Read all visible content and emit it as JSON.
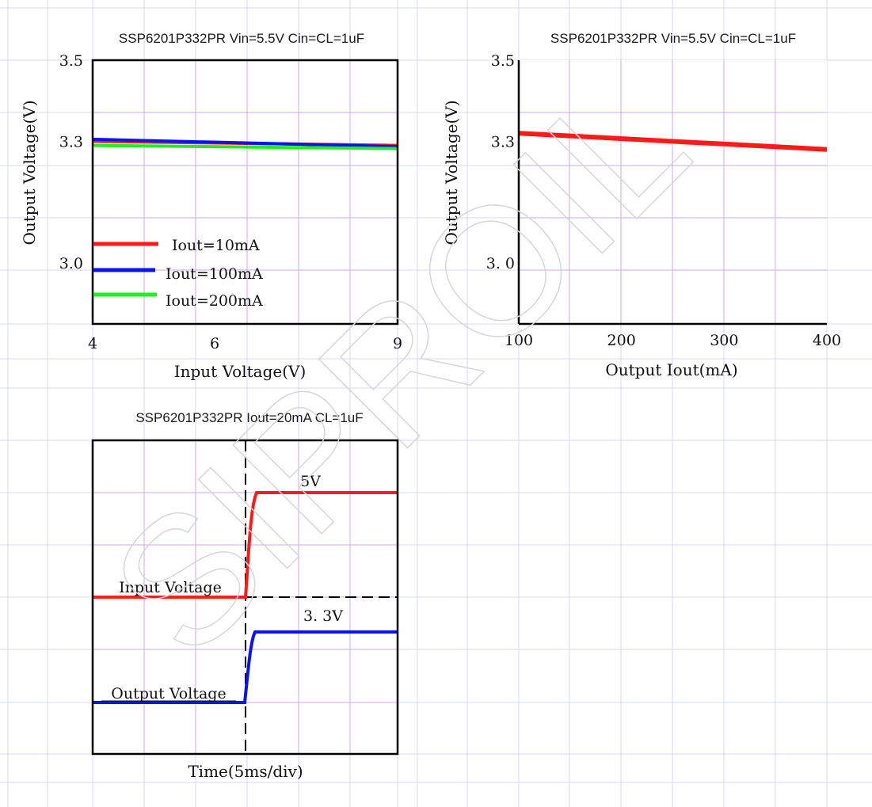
{
  "watermark": "SIPROIL",
  "colors": {
    "page_grid": "#d6d9ef",
    "plot_grid": "#c9a8ee",
    "frame": "#000000",
    "red": "#ff1a1a",
    "blue": "#0a14ee",
    "green": "#22ee22"
  },
  "chart_data": [
    {
      "id": "line-regulation",
      "type": "line",
      "title": "SSP6201P332PR Vin=5.5V Cin=CL=1uF",
      "xlabel": "Input Voltage(V)",
      "ylabel": "Output Voltage(V)",
      "xlim": [
        4,
        9
      ],
      "ylim": [
        2.85,
        3.5
      ],
      "xticks": [
        {
          "value": 4,
          "label": "4"
        },
        {
          "value": 6,
          "label": "6"
        },
        {
          "value": 9,
          "label": "9"
        }
      ],
      "yticks": [
        {
          "value": 3.5,
          "label": "3.5"
        },
        {
          "value": 3.3,
          "label": "3.3"
        },
        {
          "value": 3.0,
          "label": "3.0"
        }
      ],
      "grid": true,
      "legend_position": "bottom-left",
      "series": [
        {
          "name": "Iout=10mA",
          "color": "#ff1a1a",
          "x": [
            4,
            9
          ],
          "y": [
            3.3,
            3.29
          ]
        },
        {
          "name": "Iout=100mA",
          "color": "#0a14ee",
          "x": [
            4,
            9
          ],
          "y": [
            3.305,
            3.287
          ]
        },
        {
          "name": "Iout=200mA",
          "color": "#22ee22",
          "x": [
            4,
            9
          ],
          "y": [
            3.29,
            3.282
          ]
        }
      ]
    },
    {
      "id": "load-regulation",
      "type": "line",
      "title": "SSP6201P332PR Vin=5.5V Cin=CL=1uF",
      "xlabel": "Output Iout(mA)",
      "ylabel": "Output Voltage(V)",
      "xlim": [
        100,
        400
      ],
      "ylim": [
        2.85,
        3.5
      ],
      "xticks": [
        {
          "value": 100,
          "label": "100"
        },
        {
          "value": 200,
          "label": "200"
        },
        {
          "value": 300,
          "label": "300"
        },
        {
          "value": 400,
          "label": "400"
        }
      ],
      "yticks": [
        {
          "value": 3.5,
          "label": "3.5"
        },
        {
          "value": 3.3,
          "label": "3.3"
        },
        {
          "value": 3.0,
          "label": "3. 0"
        }
      ],
      "grid": true,
      "series": [
        {
          "color": "#ff1a1a",
          "x": [
            100,
            400
          ],
          "y": [
            3.32,
            3.28
          ]
        }
      ]
    },
    {
      "id": "power-on",
      "type": "line",
      "title": "SSP6201P332PR Iout=20mA CL=1uF",
      "xlabel": "Time(5ms/div)",
      "grid": true,
      "annotations": [
        {
          "text": "5V"
        },
        {
          "text": "3. 3V"
        },
        {
          "text": "Input Voltage"
        },
        {
          "text": "Output Voltage"
        }
      ],
      "series": [
        {
          "name": "Input Voltage",
          "color": "#ff1a1a"
        },
        {
          "name": "Output Voltage",
          "color": "#0a14ee"
        }
      ]
    }
  ]
}
